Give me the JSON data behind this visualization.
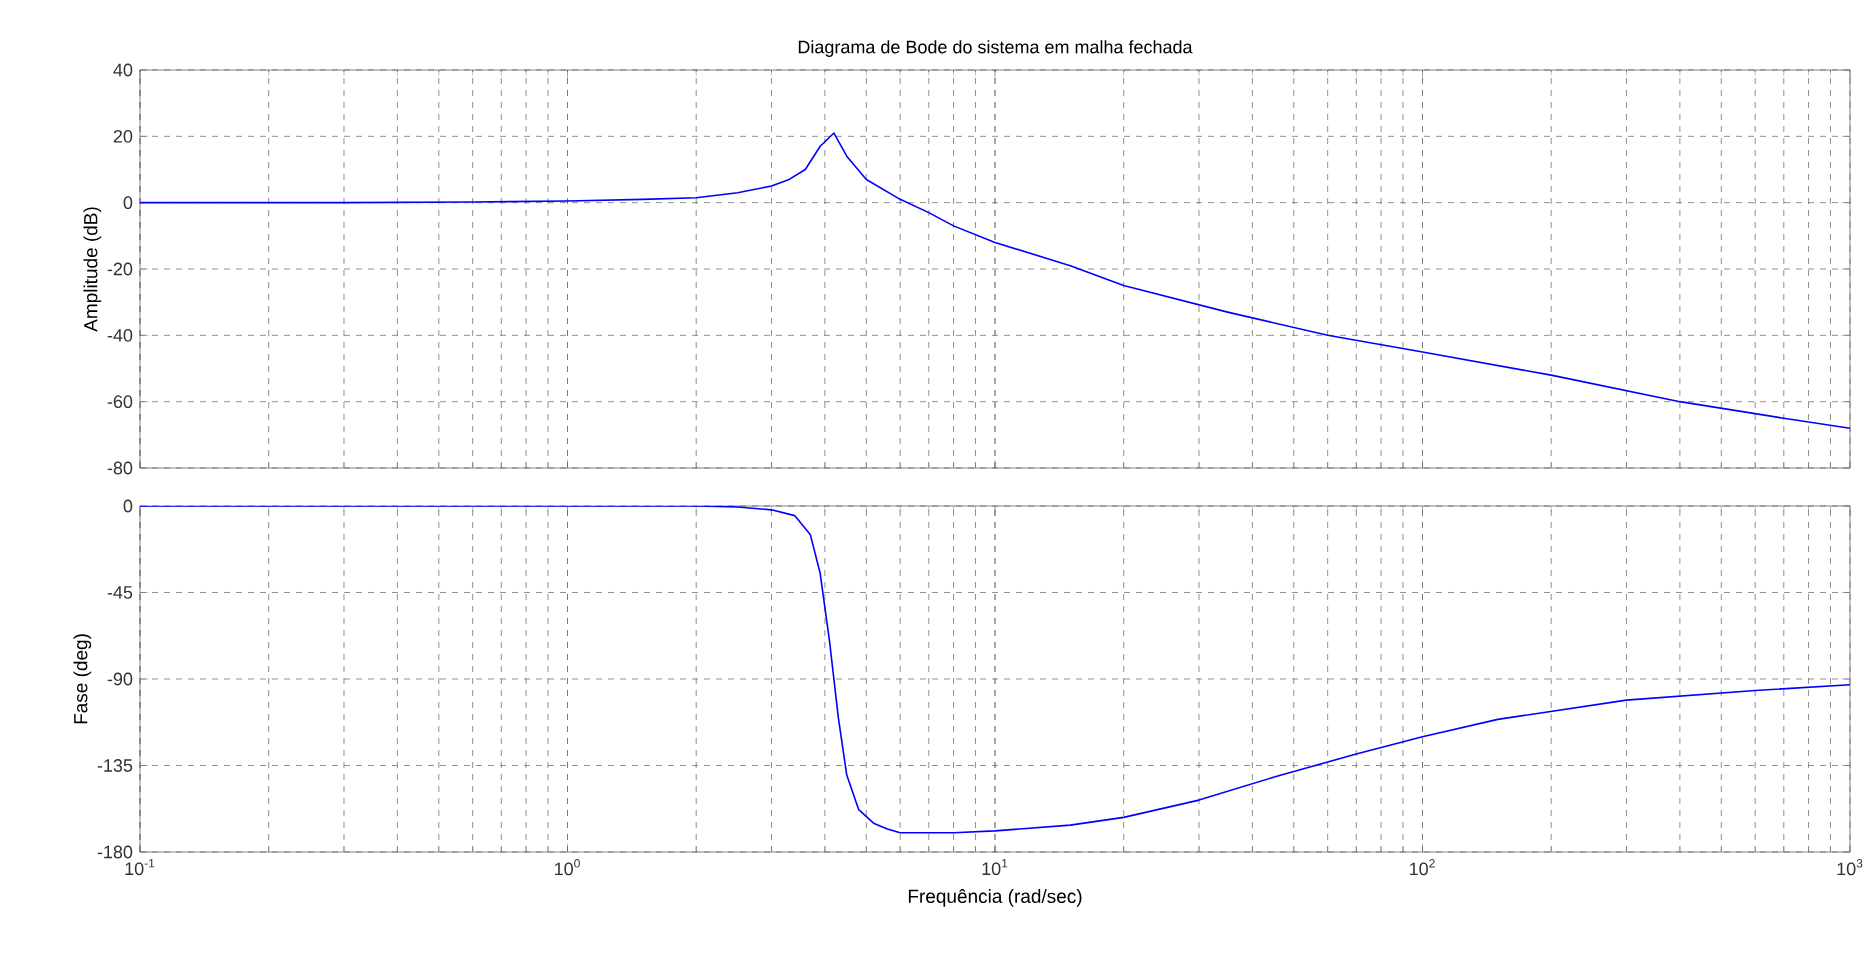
{
  "chart_data": [
    {
      "type": "line",
      "title": "Diagrama de Bode do sistema em malha fechada",
      "ylabel": "Amplitude (dB)",
      "log": "x",
      "grid": true,
      "marker": "none",
      "line_style": "solid",
      "tick_labels": "y",
      "xlim": [
        0.1,
        1000
      ],
      "ylim": [
        -80,
        40
      ],
      "yticks": [
        -80,
        -60,
        -40,
        -20,
        0,
        20,
        40
      ],
      "x": [
        0.1,
        0.3,
        0.6,
        1,
        1.5,
        2,
        2.5,
        3,
        3.3,
        3.6,
        3.9,
        4.2,
        4.5,
        5,
        6,
        7,
        8,
        10,
        15,
        20,
        35,
        60,
        100,
        200,
        400,
        700,
        1000
      ],
      "series": [
        {
          "color": "#0000ff",
          "values": [
            0,
            0,
            0.2,
            0.5,
            1,
            1.5,
            3,
            5,
            7,
            10,
            17,
            21,
            14,
            7,
            1,
            -3,
            -7,
            -12,
            -19,
            -25,
            -33,
            -40,
            -45,
            -52,
            -60,
            -65,
            -68
          ]
        }
      ]
    },
    {
      "type": "line",
      "xlabel": "Frequência  (rad/sec)",
      "ylabel": "Fase (deg)",
      "log": "x",
      "grid": true,
      "marker": "none",
      "line_style": "solid",
      "xlim": [
        0.1,
        1000
      ],
      "ylim": [
        -180,
        0
      ],
      "xticks": [
        {
          "value": 0.1,
          "label": "10$^{-1}$"
        },
        {
          "value": 1,
          "label": "10$^{0}$"
        },
        {
          "value": 10,
          "label": "10$^{1}$"
        },
        {
          "value": 100,
          "label": "10$^{2}$"
        },
        {
          "value": 1000,
          "label": "10$^{3}$"
        }
      ],
      "yticks": [
        -180,
        -135,
        -90,
        -45,
        0
      ],
      "x": [
        0.1,
        1,
        2,
        2.5,
        3,
        3.4,
        3.7,
        3.9,
        4.1,
        4.3,
        4.5,
        4.8,
        5.2,
        5.6,
        6,
        8,
        10,
        15,
        20,
        30,
        45,
        70,
        100,
        150,
        300,
        600,
        1000
      ],
      "series": [
        {
          "color": "#0000ff",
          "values": [
            0,
            0,
            0,
            -0.5,
            -2,
            -5,
            -15,
            -35,
            -70,
            -110,
            -140,
            -158,
            -165,
            -168,
            -170,
            -170,
            -169,
            -166,
            -162,
            -153,
            -141,
            -129,
            -120,
            -111,
            -101,
            -96,
            -93
          ]
        }
      ]
    }
  ]
}
